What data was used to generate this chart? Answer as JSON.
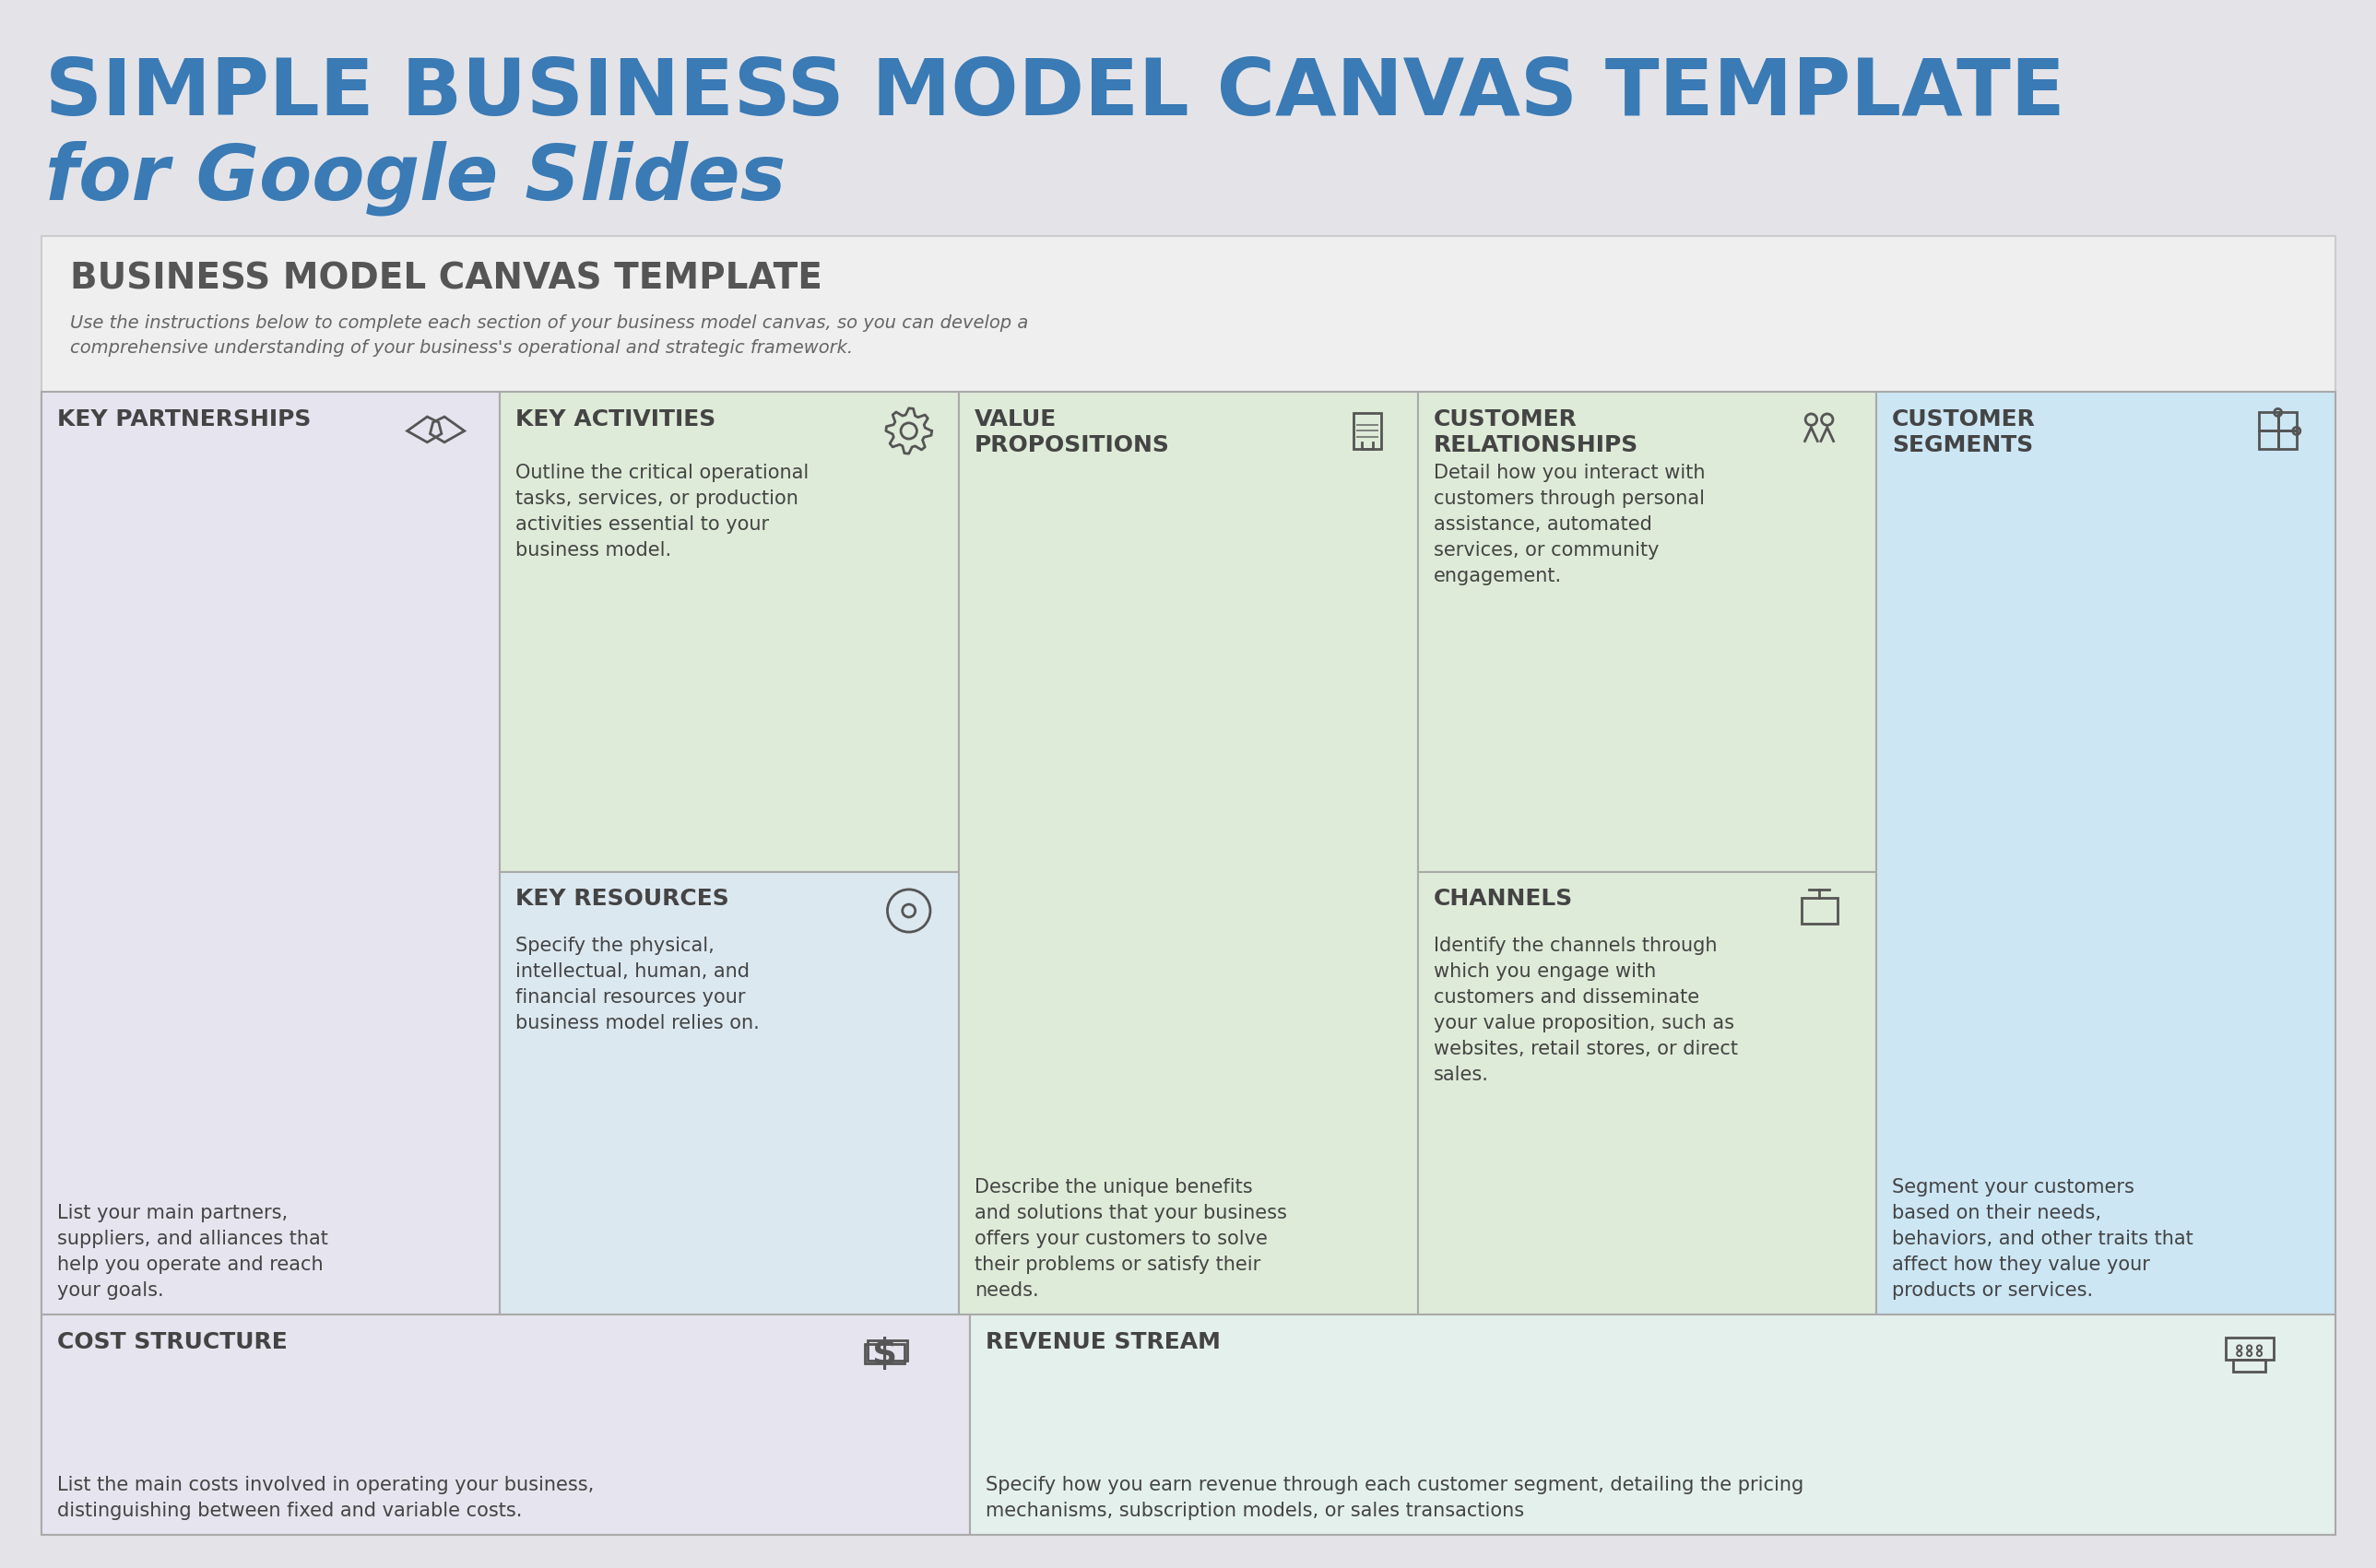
{
  "bg_color": "#e4e4e8",
  "canvas_bg": "#efefef",
  "title_line1": "SIMPLE BUSINESS MODEL CANVAS TEMPLATE",
  "title_line2": "for Google Slides",
  "title_color": "#3a7ab5",
  "canvas_title": "BUSINESS MODEL CANVAS TEMPLATE",
  "canvas_subtitle": "Use the instructions below to complete each section of your business model canvas, so you can develop a\ncomprehensive understanding of your business's operational and strategic framework.",
  "canvas_title_color": "#555555",
  "canvas_subtitle_color": "#666666",
  "cell_border_color": "#aaaaaa",
  "cell_text_color": "#444444",
  "header_fontsize": 18,
  "body_fontsize": 15,
  "cells": {
    "key_partnerships": {
      "color": "#e6e4ee",
      "header": "KEY PARTNERSHIPS",
      "body": "List your main partners,\nsuppliers, and alliances that\nhelp you operate and reach\nyour goals."
    },
    "key_activities": {
      "color": "#deebd8",
      "header": "KEY ACTIVITIES",
      "body": "Outline the critical operational\ntasks, services, or production\nactivities essential to your\nbusiness model."
    },
    "key_resources": {
      "color": "#dce8f0",
      "header": "KEY RESOURCES",
      "body": "Specify the physical,\nintellectual, human, and\nfinancial resources your\nbusiness model relies on."
    },
    "value_propositions": {
      "color": "#deebd8",
      "header": "VALUE\nPROPOSITIONS",
      "body": "Describe the unique benefits\nand solutions that your business\noffers your customers to solve\ntheir problems or satisfy their\nneeds."
    },
    "customer_relationships": {
      "color": "#deebd8",
      "header": "CUSTOMER\nRELATIONSHIPS",
      "body": "Detail how you interact with\ncustomers through personal\nassistance, automated\nservices, or community\nengagement."
    },
    "channels": {
      "color": "#deebd8",
      "header": "CHANNELS",
      "body": "Identify the channels through\nwhich you engage with\ncustomers and disseminate\nyour value proposition, such as\nwebsites, retail stores, or direct\nsales."
    },
    "customer_segments": {
      "color": "#cce6f4",
      "header": "CUSTOMER\nSEGMENTS",
      "body": "Segment your customers\nbased on their needs,\nbehaviors, and other traits that\naffect how they value your\nproducts or services."
    },
    "cost_structure": {
      "color": "#e6e4ee",
      "header": "COST STRUCTURE",
      "body": "List the main costs involved in operating your business,\ndistinguishing between fixed and variable costs."
    },
    "revenue_stream": {
      "color": "#e4f0ec",
      "header": "REVENUE STREAM",
      "body": "Specify how you earn revenue through each customer segment, detailing the pricing\nmechanisms, subscription models, or sales transactions"
    }
  }
}
